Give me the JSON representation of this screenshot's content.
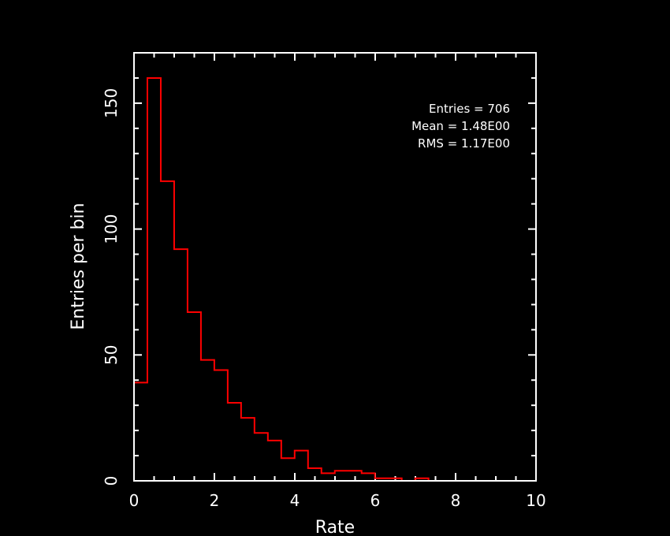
{
  "chart_data": {
    "type": "bar",
    "xlabel": "Rate",
    "ylabel": "Entries per bin",
    "xlim": [
      0,
      10
    ],
    "ylim": [
      0,
      170
    ],
    "x_ticks": [
      0,
      2,
      4,
      6,
      8,
      10
    ],
    "y_ticks": [
      0,
      50,
      100,
      150
    ],
    "bin_width": 0.333,
    "bin_edges_start": 0,
    "values": [
      39,
      160,
      119,
      92,
      67,
      48,
      44,
      31,
      25,
      19,
      16,
      9,
      12,
      5,
      3,
      4,
      4,
      3,
      1,
      1,
      0,
      1,
      0,
      0,
      0,
      0,
      0,
      0,
      0,
      0
    ],
    "series_color": "#ff0000",
    "axis_color": "#ffffff",
    "background": "#000000",
    "stats": {
      "entries": "Entries = 706",
      "mean": "Mean = 1.48E00",
      "rms": "RMS = 1.17E00"
    },
    "stats_placement": "top-right"
  }
}
